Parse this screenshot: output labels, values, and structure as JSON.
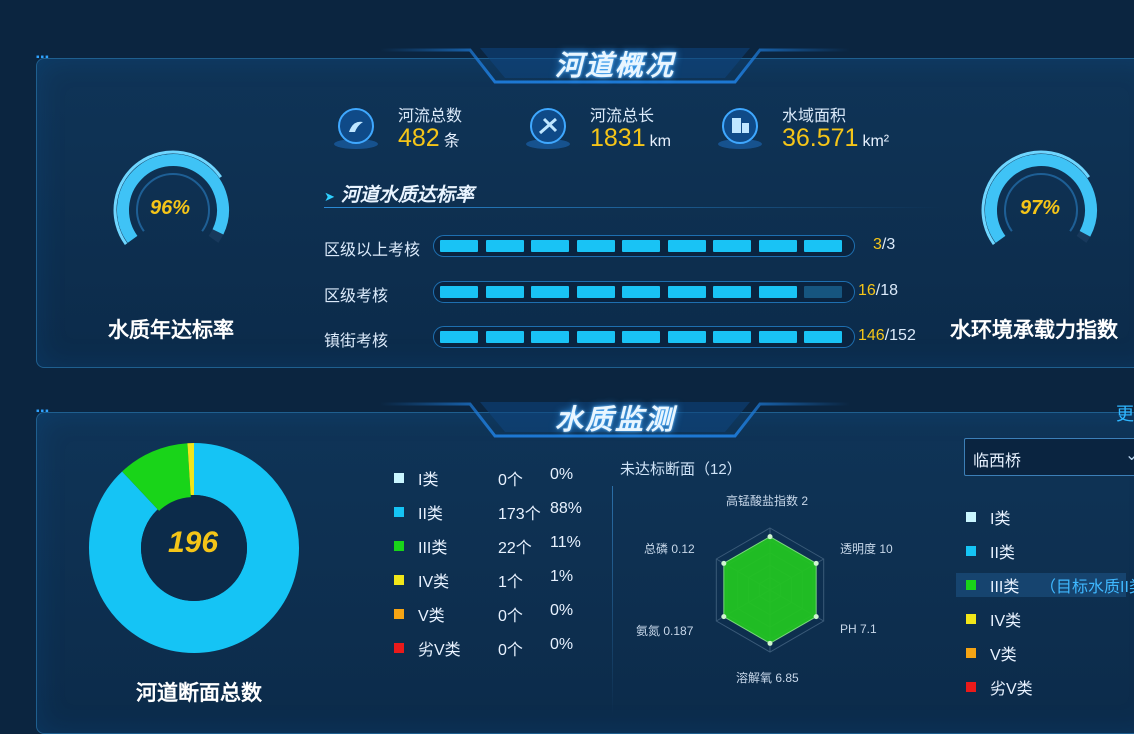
{
  "overview": {
    "title": "河道概况",
    "stats": [
      {
        "label": "河流总数",
        "value": "482",
        "unit": "条",
        "icon": "river-count-icon"
      },
      {
        "label": "河流总长",
        "value": "1831",
        "unit": "km",
        "icon": "river-length-icon"
      },
      {
        "label": "水域面积",
        "value": "36.571",
        "unit": "km²",
        "icon": "water-area-icon"
      }
    ],
    "left_gauge": {
      "value_text": "96%",
      "value": 0.96,
      "label": "水质年达标率"
    },
    "right_gauge": {
      "value_text": "97%",
      "value": 0.97,
      "label": "水环境承载力指数"
    },
    "compliance": {
      "title": "河道水质达标率",
      "rows": [
        {
          "label": "区级以上考核",
          "done": "3",
          "total": "/3",
          "fraction": 1.0
        },
        {
          "label": "区级考核",
          "done": "16",
          "total": "/18",
          "fraction": 0.889
        },
        {
          "label": "镇街考核",
          "done": "146",
          "total": "/152",
          "fraction": 0.961
        }
      ]
    }
  },
  "monitoring": {
    "title": "水质监测",
    "more_label": "更",
    "donut": {
      "center_value": "196",
      "label": "河道断面总数"
    },
    "legend": [
      {
        "name": "I类",
        "count": "0个",
        "pct": "0%",
        "color": "#c9f6ff",
        "share": 0.0
      },
      {
        "name": "II类",
        "count": "173个",
        "pct": "88%",
        "color": "#15c4f5",
        "share": 0.88
      },
      {
        "name": "III类",
        "count": "22个",
        "pct": "11%",
        "color": "#19d419",
        "share": 0.11
      },
      {
        "name": "IV类",
        "count": "1个",
        "pct": "1%",
        "color": "#f1e619",
        "share": 0.01
      },
      {
        "name": "V类",
        "count": "0个",
        "pct": "0%",
        "color": "#f5a414",
        "share": 0.0
      },
      {
        "name": "劣V类",
        "count": "0个",
        "pct": "0%",
        "color": "#ea1a1a",
        "share": 0.0
      }
    ],
    "radar": {
      "title": "未达标断面（12）",
      "labels": [
        "高锰酸盐指数 2",
        "透明度 10",
        "PH 7.1",
        "溶解氧 6.85",
        "氨氮 0.187",
        "总磷 0.12"
      ]
    },
    "right_panel": {
      "selected_station": "临西桥",
      "legend": [
        "I类",
        "II类",
        "III类",
        "IV类",
        "V类",
        "劣V类"
      ],
      "colors": [
        "#c9f6ff",
        "#15c4f5",
        "#19d419",
        "#f1e619",
        "#f5a414",
        "#ea1a1a"
      ],
      "target_note": "（目标水质II类"
    }
  }
}
